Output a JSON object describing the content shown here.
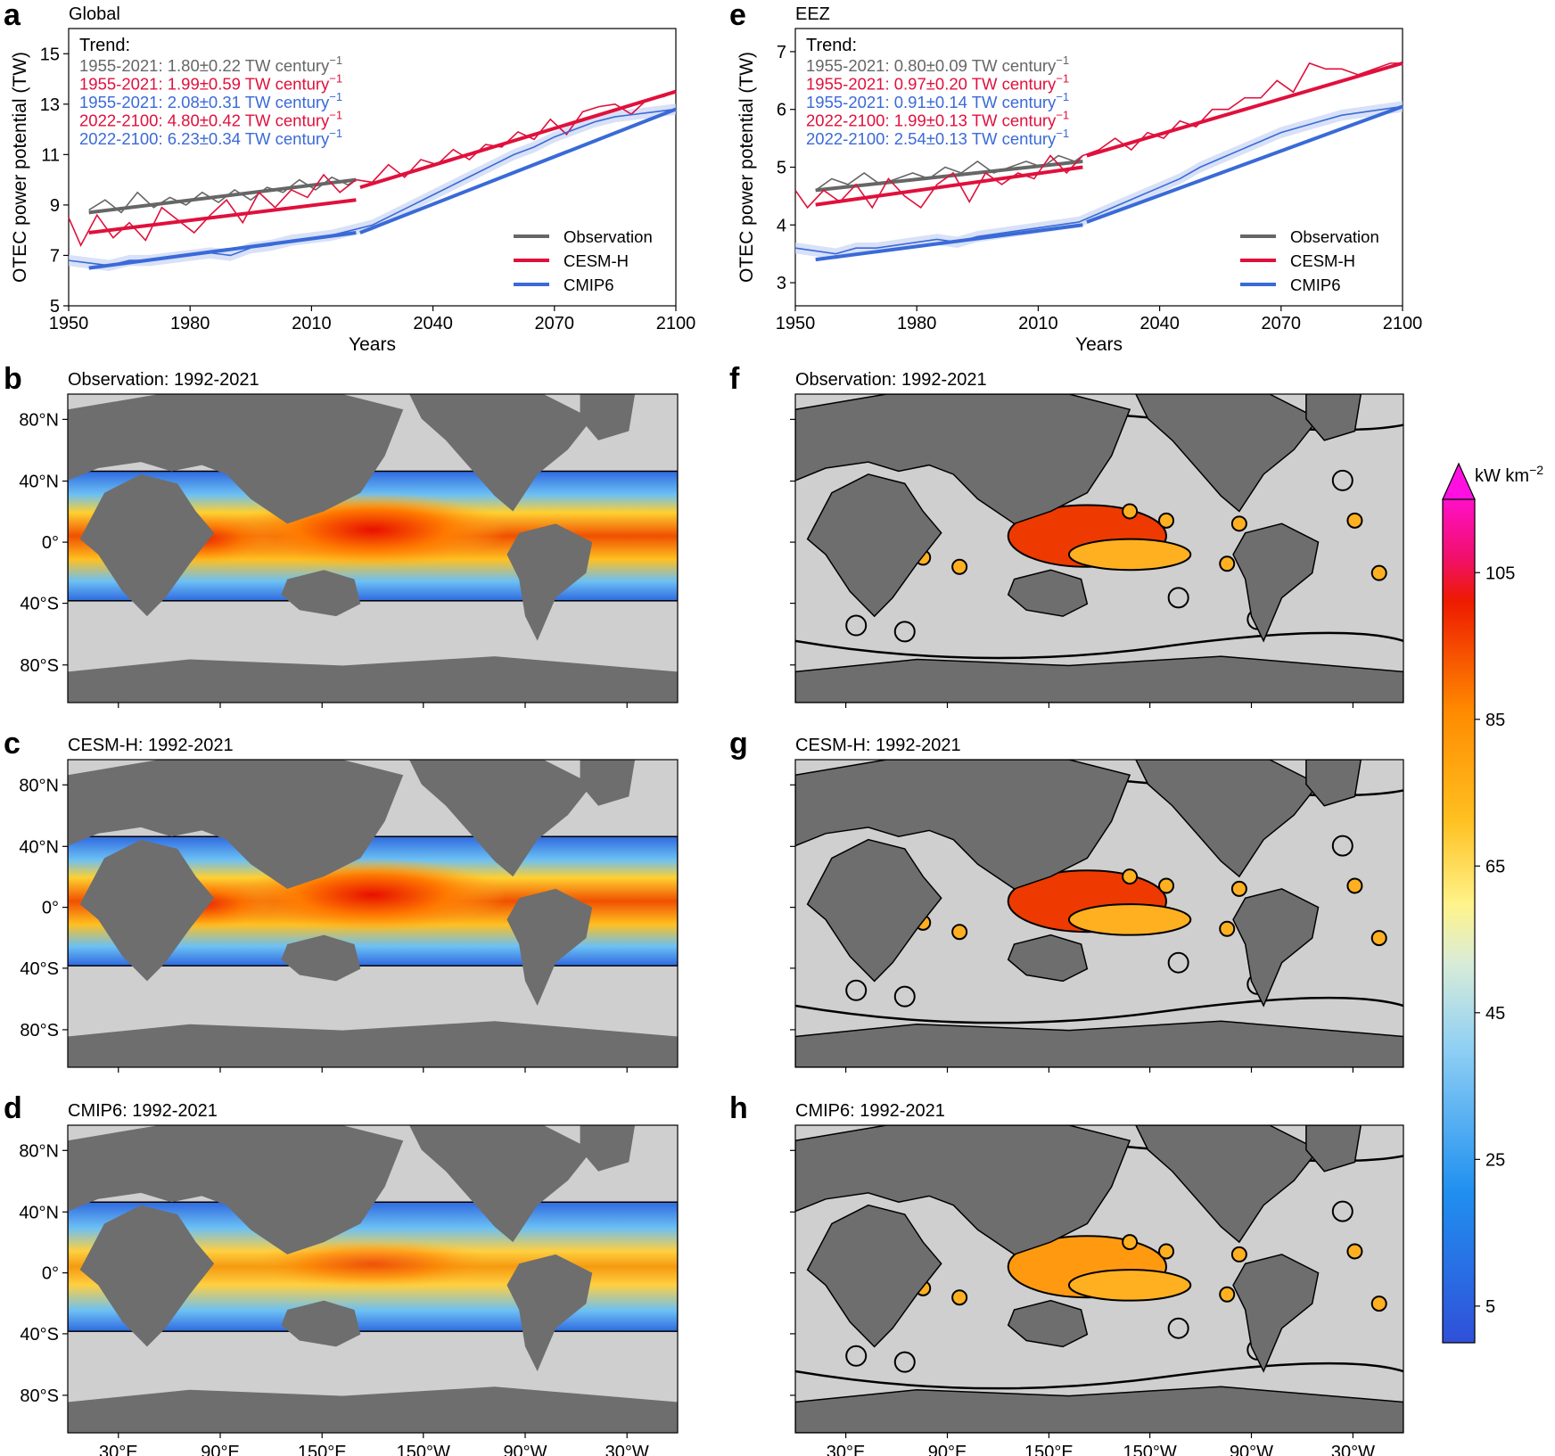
{
  "panel_letters": {
    "a": "a",
    "b": "b",
    "c": "c",
    "d": "d",
    "e": "e",
    "f": "f",
    "g": "g",
    "h": "h"
  },
  "chart_data": [
    {
      "type": "line",
      "panel": "a",
      "title": "Global",
      "xlabel": "Years",
      "ylabel": "OTEC power potential (TW)",
      "xlim": [
        1950,
        2100
      ],
      "ylim": [
        5,
        16
      ],
      "xticks": [
        "1950",
        "1980",
        "2010",
        "2040",
        "2070",
        "2100"
      ],
      "yticks": [
        "5",
        "7",
        "9",
        "11",
        "13",
        "15"
      ],
      "trend_header": "Trend:",
      "trend_lines": [
        {
          "text": "1955-2021: 1.80±0.22 TW century",
          "color": "#666666"
        },
        {
          "text": "1955-2021: 1.99±0.59 TW century",
          "color": "#e0103c"
        },
        {
          "text": "1955-2021: 2.08±0.31 TW century",
          "color": "#3a6ad8"
        },
        {
          "text": "2022-2100: 4.80±0.42 TW century",
          "color": "#e0103c"
        },
        {
          "text": "2022-2100: 6.23±0.34 TW century",
          "color": "#3a6ad8"
        }
      ],
      "superscript": "−1",
      "legend": [
        "Observation",
        "CESM-H",
        "CMIP6"
      ],
      "legend_position": "bottom-right",
      "series": [
        {
          "name": "Observation",
          "color": "#666666",
          "x": [
            1955,
            1959,
            1963,
            1967,
            1971,
            1975,
            1979,
            1983,
            1987,
            1991,
            1995,
            1999,
            2003,
            2007,
            2011,
            2015,
            2019,
            2021
          ],
          "values": [
            8.8,
            9.2,
            8.7,
            9.5,
            8.9,
            9.3,
            9.0,
            9.5,
            9.1,
            9.6,
            9.2,
            9.7,
            9.5,
            10.0,
            9.6,
            10.1,
            9.8,
            10.0
          ],
          "trend": {
            "x": [
              1955,
              2021
            ],
            "y": [
              8.7,
              10.0
            ]
          }
        },
        {
          "name": "CESM-H",
          "color": "#e0103c",
          "x": [
            1950,
            1953,
            1957,
            1961,
            1965,
            1969,
            1973,
            1977,
            1981,
            1985,
            1989,
            1993,
            1997,
            2001,
            2005,
            2009,
            2013,
            2017,
            2021,
            2025,
            2029,
            2033,
            2037,
            2041,
            2045,
            2049,
            2053,
            2057,
            2061,
            2065,
            2069,
            2073,
            2077,
            2081,
            2085,
            2089,
            2093,
            2097,
            2100
          ],
          "values": [
            8.5,
            7.4,
            8.6,
            7.7,
            8.3,
            7.6,
            8.9,
            8.4,
            7.9,
            8.6,
            9.2,
            8.3,
            9.5,
            8.9,
            9.6,
            9.3,
            10.2,
            9.5,
            10.0,
            9.9,
            10.6,
            10.1,
            10.8,
            10.6,
            11.2,
            10.8,
            11.4,
            11.3,
            11.9,
            11.6,
            12.4,
            11.8,
            12.7,
            12.9,
            13.0,
            12.6,
            13.2,
            13.3,
            13.5
          ],
          "trend": {
            "x": [
              1955,
              2021
            ],
            "y": [
              7.9,
              9.2
            ]
          },
          "trend2": {
            "x": [
              2022,
              2100
            ],
            "y": [
              9.7,
              13.5
            ]
          }
        },
        {
          "name": "CMIP6",
          "color": "#3a6ad8",
          "x": [
            1950,
            1955,
            1960,
            1965,
            1970,
            1975,
            1980,
            1985,
            1990,
            1995,
            2000,
            2005,
            2010,
            2015,
            2020,
            2025,
            2030,
            2035,
            2040,
            2045,
            2050,
            2055,
            2060,
            2065,
            2070,
            2075,
            2080,
            2085,
            2090,
            2095,
            2100
          ],
          "values": [
            6.8,
            6.7,
            6.6,
            6.8,
            6.8,
            6.9,
            7.0,
            7.1,
            7.0,
            7.3,
            7.4,
            7.6,
            7.7,
            7.8,
            8.0,
            8.2,
            8.6,
            9.0,
            9.4,
            9.8,
            10.2,
            10.6,
            11.0,
            11.3,
            11.7,
            12.0,
            12.3,
            12.5,
            12.6,
            12.7,
            12.8
          ],
          "trend": {
            "x": [
              1955,
              2021
            ],
            "y": [
              6.5,
              7.9
            ]
          },
          "trend2": {
            "x": [
              2022,
              2100
            ],
            "y": [
              7.9,
              12.8
            ]
          }
        }
      ]
    },
    {
      "type": "line",
      "panel": "e",
      "title": "EEZ",
      "xlabel": "Years",
      "ylabel": "OTEC power potential (TW)",
      "xlim": [
        1950,
        2100
      ],
      "ylim": [
        2.6,
        7.4
      ],
      "xticks": [
        "1950",
        "1980",
        "2010",
        "2040",
        "2070",
        "2100"
      ],
      "yticks": [
        "3",
        "4",
        "5",
        "6",
        "7"
      ],
      "trend_header": "Trend:",
      "trend_lines": [
        {
          "text": "1955-2021: 0.80±0.09 TW century",
          "color": "#666666"
        },
        {
          "text": "1955-2021: 0.97±0.20 TW century",
          "color": "#e0103c"
        },
        {
          "text": "1955-2021: 0.91±0.14 TW century",
          "color": "#3a6ad8"
        },
        {
          "text": "2022-2100: 1.99±0.13 TW century",
          "color": "#e0103c"
        },
        {
          "text": "2022-2100: 2.54±0.13 TW century",
          "color": "#3a6ad8"
        }
      ],
      "superscript": "−1",
      "legend": [
        "Observation",
        "CESM-H",
        "CMIP6"
      ],
      "legend_position": "bottom-right",
      "series": [
        {
          "name": "Observation",
          "color": "#666666",
          "x": [
            1955,
            1959,
            1963,
            1967,
            1971,
            1975,
            1979,
            1983,
            1987,
            1991,
            1995,
            1999,
            2003,
            2007,
            2011,
            2015,
            2019,
            2021
          ],
          "values": [
            4.6,
            4.8,
            4.7,
            4.9,
            4.7,
            4.8,
            4.9,
            4.8,
            5.0,
            4.9,
            5.1,
            4.9,
            5.0,
            5.1,
            5.0,
            5.2,
            5.1,
            5.2
          ],
          "trend": {
            "x": [
              1955,
              2021
            ],
            "y": [
              4.6,
              5.1
            ]
          }
        },
        {
          "name": "CESM-H",
          "color": "#e0103c",
          "x": [
            1950,
            1953,
            1957,
            1961,
            1965,
            1969,
            1973,
            1977,
            1981,
            1985,
            1989,
            1993,
            1997,
            2001,
            2005,
            2009,
            2013,
            2017,
            2021,
            2025,
            2029,
            2033,
            2037,
            2041,
            2045,
            2049,
            2053,
            2057,
            2061,
            2065,
            2069,
            2073,
            2077,
            2081,
            2085,
            2089,
            2093,
            2097,
            2100
          ],
          "values": [
            4.6,
            4.3,
            4.6,
            4.4,
            4.7,
            4.3,
            4.8,
            4.5,
            4.3,
            4.7,
            4.9,
            4.4,
            4.9,
            4.7,
            4.9,
            4.8,
            5.2,
            4.9,
            5.2,
            5.3,
            5.5,
            5.3,
            5.6,
            5.5,
            5.8,
            5.7,
            6.0,
            6.0,
            6.2,
            6.2,
            6.5,
            6.3,
            6.8,
            6.7,
            6.7,
            6.6,
            6.7,
            6.8,
            6.8
          ],
          "trend": {
            "x": [
              1955,
              2021
            ],
            "y": [
              4.35,
              5.0
            ]
          },
          "trend2": {
            "x": [
              2022,
              2100
            ],
            "y": [
              5.2,
              6.8
            ]
          }
        },
        {
          "name": "CMIP6",
          "color": "#3a6ad8",
          "x": [
            1950,
            1955,
            1960,
            1965,
            1970,
            1975,
            1980,
            1985,
            1990,
            1995,
            2000,
            2005,
            2010,
            2015,
            2020,
            2025,
            2030,
            2035,
            2040,
            2045,
            2050,
            2055,
            2060,
            2065,
            2070,
            2075,
            2080,
            2085,
            2090,
            2095,
            2100
          ],
          "values": [
            3.6,
            3.55,
            3.5,
            3.6,
            3.6,
            3.65,
            3.7,
            3.75,
            3.7,
            3.8,
            3.85,
            3.9,
            3.95,
            4.0,
            4.05,
            4.2,
            4.35,
            4.5,
            4.65,
            4.8,
            5.0,
            5.15,
            5.3,
            5.45,
            5.6,
            5.7,
            5.8,
            5.9,
            5.95,
            6.0,
            6.05
          ],
          "trend": {
            "x": [
              1955,
              2021
            ],
            "y": [
              3.4,
              4.0
            ]
          },
          "trend2": {
            "x": [
              2022,
              2100
            ],
            "y": [
              4.05,
              6.05
            ]
          }
        }
      ]
    },
    {
      "type": "heatmap",
      "panels": [
        {
          "panel": "b",
          "title": "Observation: 1992-2021",
          "region": "global"
        },
        {
          "panel": "c",
          "title": "CESM-H: 1992-2021",
          "region": "global"
        },
        {
          "panel": "d",
          "title": "CMIP6: 1992-2021",
          "region": "global"
        },
        {
          "panel": "f",
          "title": "Observation: 1992-2021",
          "region": "eez"
        },
        {
          "panel": "g",
          "title": "CESM-H: 1992-2021",
          "region": "eez"
        },
        {
          "panel": "h",
          "title": "CMIP6: 1992-2021",
          "region": "eez"
        }
      ],
      "lat_ticks": [
        "80°N",
        "40°N",
        "0°",
        "40°S",
        "80°S"
      ],
      "lon_ticks": [
        "30°E",
        "90°E",
        "150°E",
        "150°W",
        "90°W",
        "30°W"
      ],
      "colorbar": {
        "label": "kW km",
        "label_sup": "−2",
        "ticks": [
          "5",
          "25",
          "45",
          "65",
          "85",
          "105"
        ],
        "range": [
          0,
          115
        ],
        "extend": "max"
      }
    }
  ]
}
